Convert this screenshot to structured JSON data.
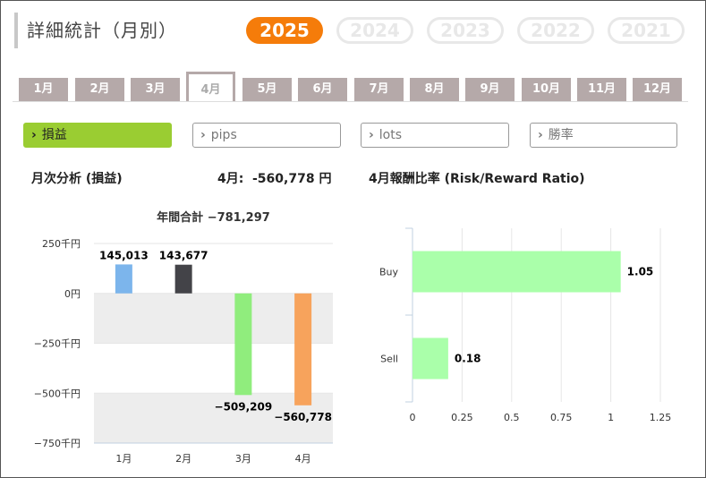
{
  "title": "詳細統計（月別）",
  "years": [
    {
      "label": "2025",
      "active": true
    },
    {
      "label": "2024",
      "active": false
    },
    {
      "label": "2023",
      "active": false
    },
    {
      "label": "2022",
      "active": false
    },
    {
      "label": "2021",
      "active": false
    }
  ],
  "months": [
    {
      "label": "1月",
      "active": false
    },
    {
      "label": "2月",
      "active": false
    },
    {
      "label": "3月",
      "active": false
    },
    {
      "label": "4月",
      "active": true
    },
    {
      "label": "5月",
      "active": false
    },
    {
      "label": "6月",
      "active": false
    },
    {
      "label": "7月",
      "active": false
    },
    {
      "label": "8月",
      "active": false
    },
    {
      "label": "9月",
      "active": false
    },
    {
      "label": "10月",
      "active": false
    },
    {
      "label": "11月",
      "active": false
    },
    {
      "label": "12月",
      "active": false
    }
  ],
  "filters": [
    {
      "label": "損益",
      "active": true
    },
    {
      "label": "pips",
      "active": false
    },
    {
      "label": "lots",
      "active": false
    },
    {
      "label": "勝率",
      "active": false
    }
  ],
  "monthly": {
    "heading": "月次分析 (損益)",
    "month_label": "4月:",
    "month_value": "-560,778 円"
  },
  "ratio_heading": "4月報酬比率 (Risk/Reward Ratio)",
  "chart_data": [
    {
      "type": "bar",
      "title": "年間合計 −781,297",
      "categories": [
        "1月",
        "2月",
        "3月",
        "4月"
      ],
      "values": [
        145013,
        143677,
        -509209,
        -560778
      ],
      "data_labels": [
        "145,013",
        "143,677",
        "−509,209",
        "−560,778"
      ],
      "colors": [
        "#7cb5ec",
        "#434348",
        "#90ed7d",
        "#f7a35c"
      ],
      "ylim": [
        -750000,
        250000
      ],
      "ytick_values": [
        250000,
        0,
        -250000,
        -500000,
        -750000
      ],
      "ytick_labels": [
        "250千円",
        "0円",
        "−250千円",
        "−500千円",
        "−750千円"
      ],
      "banded_background": true
    },
    {
      "type": "bar",
      "orientation": "horizontal",
      "categories": [
        "Buy",
        "Sell"
      ],
      "values": [
        1.05,
        0.18
      ],
      "data_labels": [
        "1.05",
        "0.18"
      ],
      "color": "#aaffaa",
      "xlim": [
        0,
        1.25
      ],
      "xtick_values": [
        0,
        0.25,
        0.5,
        0.75,
        1,
        1.25
      ],
      "xtick_labels": [
        "0",
        "0.25",
        "0.5",
        "0.75",
        "1",
        "1.25"
      ],
      "grid": true
    }
  ]
}
